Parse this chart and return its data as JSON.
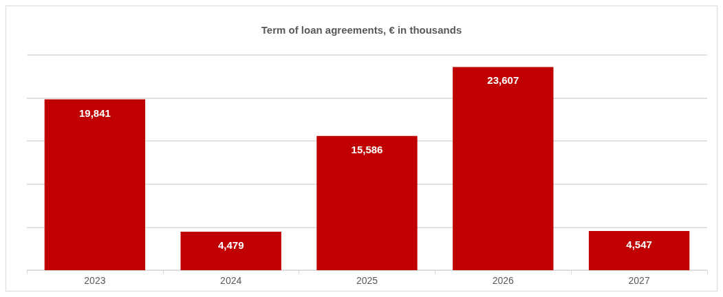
{
  "chart_data": {
    "type": "bar",
    "title": "Term of loan agreements, € in thousands",
    "categories": [
      "2023",
      "2024",
      "2025",
      "2026",
      "2027"
    ],
    "values": [
      19841,
      4479,
      15586,
      23607,
      4547
    ],
    "value_labels": [
      "19,841",
      "4,479",
      "15,586",
      "23,607",
      "4,547"
    ],
    "color": "#c00000",
    "grid": "y",
    "tick_labels": "x"
  }
}
